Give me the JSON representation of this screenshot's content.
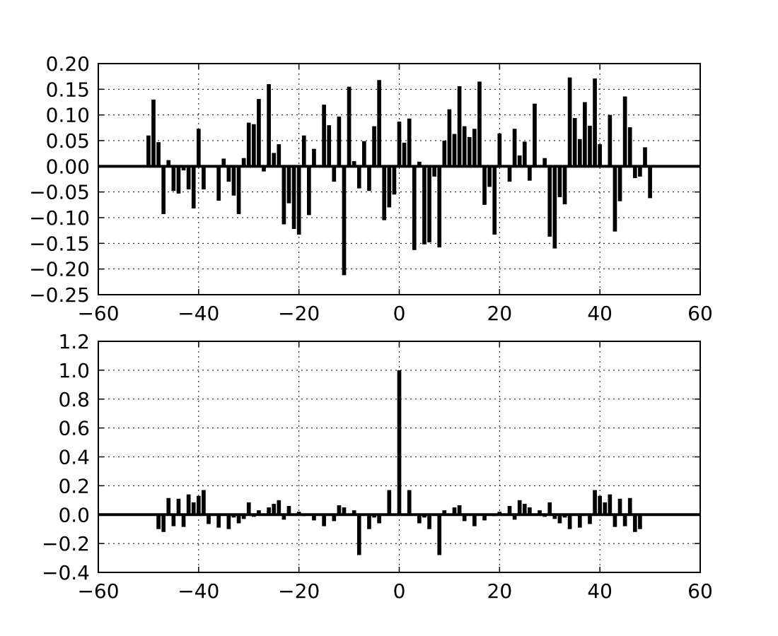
{
  "chart_data": [
    {
      "type": "bar",
      "title": "",
      "xlabel": "",
      "ylabel": "",
      "xlim": [
        -60,
        60
      ],
      "ylim": [
        -0.25,
        0.2
      ],
      "grid": true,
      "x_ticks": [
        -60,
        -40,
        -20,
        0,
        20,
        40,
        60
      ],
      "y_ticks": [
        -0.25,
        -0.2,
        -0.15,
        -0.1,
        -0.05,
        0.0,
        0.05,
        0.1,
        0.15,
        0.2
      ],
      "x_tick_labels": [
        "−60",
        "−40",
        "−20",
        "0",
        "20",
        "40",
        "60"
      ],
      "y_tick_labels": [
        "−0.25",
        "−0.20",
        "−0.15",
        "−0.10",
        "−0.05",
        "0.00",
        "0.05",
        "0.10",
        "0.15",
        "0.20"
      ],
      "x": [
        -50,
        -49,
        -48,
        -47,
        -46,
        -45,
        -44,
        -43,
        -42,
        -41,
        -40,
        -39,
        -38,
        -37,
        -36,
        -35,
        -34,
        -33,
        -32,
        -31,
        -30,
        -29,
        -28,
        -27,
        -26,
        -25,
        -24,
        -23,
        -22,
        -21,
        -20,
        -19,
        -18,
        -17,
        -16,
        -15,
        -14,
        -13,
        -12,
        -11,
        -10,
        -9,
        -8,
        -7,
        -6,
        -5,
        -4,
        -3,
        -2,
        -1,
        0,
        1,
        2,
        3,
        4,
        5,
        6,
        7,
        8,
        9,
        10,
        11,
        12,
        13,
        14,
        15,
        16,
        17,
        18,
        19,
        20,
        21,
        22,
        23,
        24,
        25,
        26,
        27,
        28,
        29,
        30,
        31,
        32,
        33,
        34,
        35,
        36,
        37,
        38,
        39,
        40,
        41,
        42,
        43,
        44,
        45,
        46,
        47,
        48,
        49,
        50
      ],
      "values": [
        0.06,
        0.13,
        0.047,
        -0.093,
        0.012,
        -0.048,
        -0.053,
        -0.008,
        -0.045,
        -0.082,
        0.073,
        -0.045,
        0.0,
        0.0,
        -0.067,
        0.015,
        -0.03,
        -0.057,
        -0.093,
        0.016,
        0.085,
        0.082,
        0.131,
        -0.01,
        0.16,
        0.026,
        0.043,
        -0.113,
        -0.072,
        -0.122,
        -0.133,
        0.06,
        -0.095,
        0.034,
        0.0,
        0.12,
        0.08,
        -0.03,
        0.097,
        -0.212,
        0.155,
        0.01,
        -0.043,
        0.049,
        -0.048,
        0.078,
        0.168,
        -0.105,
        -0.08,
        -0.055,
        0.087,
        0.046,
        0.093,
        -0.163,
        0.009,
        -0.152,
        -0.148,
        -0.02,
        -0.158,
        0.05,
        0.111,
        0.063,
        0.156,
        0.078,
        0.057,
        0.073,
        0.165,
        -0.075,
        -0.04,
        -0.133,
        0.064,
        0.0,
        -0.03,
        0.073,
        0.021,
        0.048,
        -0.028,
        0.122,
        0.0,
        0.016,
        -0.137,
        -0.16,
        -0.06,
        -0.074,
        0.173,
        0.094,
        0.053,
        0.125,
        0.079,
        0.171,
        0.043,
        0.0,
        0.1,
        -0.127,
        -0.068,
        0.136,
        0.076,
        -0.023,
        -0.02,
        0.037,
        -0.062
      ]
    },
    {
      "type": "bar",
      "title": "",
      "xlabel": "",
      "ylabel": "",
      "xlim": [
        -60,
        60
      ],
      "ylim": [
        -0.4,
        1.2
      ],
      "grid": true,
      "x_ticks": [
        -60,
        -40,
        -20,
        0,
        20,
        40,
        60
      ],
      "y_ticks": [
        -0.4,
        -0.2,
        0.0,
        0.2,
        0.4,
        0.6,
        0.8,
        1.0,
        1.2
      ],
      "x_tick_labels": [
        "−60",
        "−40",
        "−20",
        "0",
        "20",
        "40",
        "60"
      ],
      "y_tick_labels": [
        "−0.4",
        "−0.2",
        "0.0",
        "0.2",
        "0.4",
        "0.6",
        "0.8",
        "1.0",
        "1.2"
      ],
      "x": [
        -48,
        -47,
        -46,
        -45,
        -44,
        -43,
        -42,
        -41,
        -40,
        -39,
        -38,
        -37,
        -36,
        -35,
        -34,
        -33,
        -32,
        -31,
        -30,
        -29,
        -28,
        -27,
        -26,
        -25,
        -24,
        -23,
        -22,
        -21,
        -20,
        -19,
        -18,
        -17,
        -16,
        -15,
        -14,
        -13,
        -12,
        -11,
        -10,
        -9,
        -8,
        -7,
        -6,
        -5,
        -4,
        -3,
        -2,
        -1,
        0,
        1,
        2,
        3,
        4,
        5,
        6,
        7,
        8,
        9,
        10,
        11,
        12,
        13,
        14,
        15,
        16,
        17,
        18,
        19,
        20,
        21,
        22,
        23,
        24,
        25,
        26,
        27,
        28,
        29,
        30,
        31,
        32,
        33,
        34,
        35,
        36,
        37,
        38,
        39,
        40,
        41,
        42,
        43,
        44,
        45,
        46,
        47,
        48
      ],
      "values": [
        -0.1,
        -0.12,
        0.115,
        -0.08,
        0.11,
        -0.085,
        0.14,
        0.085,
        0.13,
        0.17,
        -0.065,
        0.0,
        -0.09,
        0.0,
        -0.1,
        -0.02,
        -0.06,
        -0.03,
        0.085,
        -0.015,
        0.03,
        0.0,
        0.05,
        0.075,
        0.1,
        -0.035,
        0.06,
        0.0,
        0.02,
        -0.01,
        0.0,
        -0.04,
        0.0,
        -0.08,
        0.0,
        -0.045,
        0.065,
        0.05,
        0.0,
        0.03,
        -0.28,
        0.0,
        -0.1,
        -0.02,
        -0.06,
        0.0,
        0.17,
        0.0,
        1.0,
        0.0,
        0.17,
        0.0,
        -0.06,
        -0.02,
        -0.1,
        0.0,
        -0.28,
        0.03,
        0.0,
        0.05,
        0.065,
        -0.045,
        0.0,
        -0.08,
        0.0,
        -0.04,
        0.0,
        -0.01,
        0.02,
        0.0,
        0.06,
        -0.035,
        0.1,
        0.075,
        0.05,
        0.0,
        0.03,
        -0.015,
        0.085,
        -0.03,
        -0.06,
        -0.02,
        -0.1,
        0.0,
        -0.09,
        0.0,
        -0.065,
        0.17,
        0.13,
        0.085,
        0.14,
        -0.085,
        0.11,
        -0.08,
        0.115,
        -0.12,
        -0.1
      ]
    }
  ]
}
